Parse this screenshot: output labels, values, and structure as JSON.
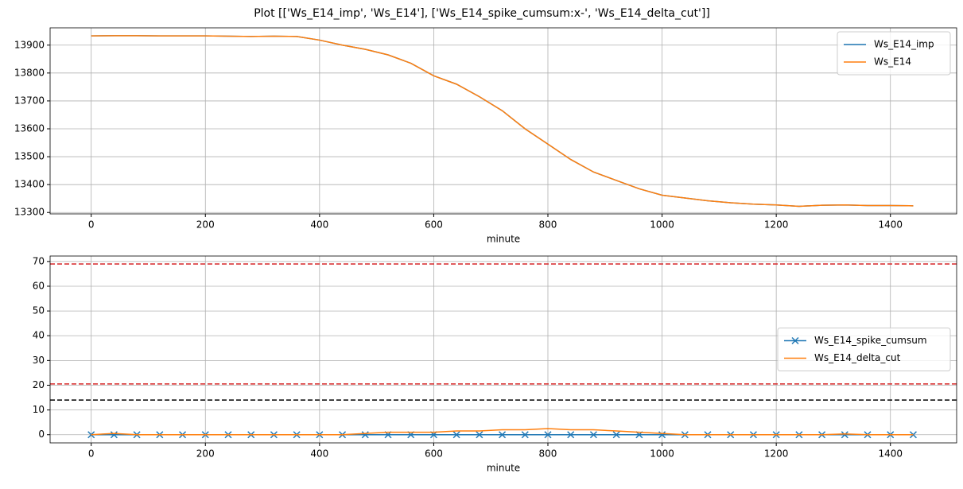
{
  "title": "Plot [['Ws_E14_imp', 'Ws_E14'], ['Ws_E14_spike_cumsum:x-', 'Ws_E14_delta_cut']]",
  "chart_data": [
    {
      "type": "line",
      "xlabel": "minute",
      "grid": true,
      "legend": "upper right",
      "xlim": [
        -72,
        1516
      ],
      "ylim": [
        13295,
        13962
      ],
      "xticks": [
        0,
        200,
        400,
        600,
        800,
        1000,
        1200,
        1400
      ],
      "yticks": [
        13300,
        13400,
        13500,
        13600,
        13700,
        13800,
        13900
      ],
      "x": [
        0,
        40,
        80,
        120,
        160,
        200,
        240,
        280,
        320,
        360,
        400,
        440,
        480,
        520,
        560,
        600,
        640,
        680,
        720,
        760,
        800,
        840,
        880,
        920,
        960,
        1000,
        1040,
        1080,
        1120,
        1160,
        1200,
        1240,
        1280,
        1320,
        1360,
        1400,
        1440
      ],
      "series": [
        {
          "name": "Ws_E14_imp",
          "color": "#1f77b4",
          "values": [
            13933,
            13934,
            13934,
            13933,
            13933,
            13933,
            13932,
            13931,
            13932,
            13931,
            13918,
            13900,
            13885,
            13865,
            13835,
            13790,
            13760,
            13715,
            13665,
            13600,
            13545,
            13490,
            13445,
            13415,
            13385,
            13362,
            13352,
            13342,
            13335,
            13330,
            13327,
            13322,
            13326,
            13327,
            13325,
            13325,
            13324
          ]
        },
        {
          "name": "Ws_E14",
          "color": "#ff7f0e",
          "values": [
            13933,
            13934,
            13934,
            13933,
            13933,
            13933,
            13932,
            13931,
            13932,
            13931,
            13918,
            13900,
            13885,
            13865,
            13835,
            13790,
            13760,
            13715,
            13665,
            13600,
            13545,
            13490,
            13445,
            13415,
            13385,
            13362,
            13352,
            13342,
            13335,
            13330,
            13327,
            13322,
            13326,
            13327,
            13325,
            13325,
            13324
          ]
        }
      ]
    },
    {
      "type": "line",
      "xlabel": "minute",
      "grid": true,
      "legend": "center right",
      "xlim": [
        -72,
        1516
      ],
      "ylim": [
        -3.3,
        72.2
      ],
      "xticks": [
        0,
        200,
        400,
        600,
        800,
        1000,
        1200,
        1400
      ],
      "yticks": [
        0,
        10,
        20,
        30,
        40,
        50,
        60,
        70
      ],
      "hlines": [
        {
          "value": 69,
          "color": "#d62728"
        },
        {
          "value": 20.5,
          "color": "#d62728"
        },
        {
          "value": 14,
          "color": "#000000"
        }
      ],
      "x": [
        0,
        40,
        80,
        120,
        160,
        200,
        240,
        280,
        320,
        360,
        400,
        440,
        480,
        520,
        560,
        600,
        640,
        680,
        720,
        760,
        800,
        840,
        880,
        920,
        960,
        1000,
        1040,
        1080,
        1120,
        1160,
        1200,
        1240,
        1280,
        1320,
        1360,
        1400,
        1440
      ],
      "series": [
        {
          "name": "Ws_E14_spike_cumsum",
          "color": "#1f77b4",
          "marker": "x",
          "values": [
            0,
            0,
            0,
            0,
            0,
            0,
            0,
            0,
            0,
            0,
            0,
            0,
            0,
            0,
            0,
            0,
            0,
            0,
            0,
            0,
            0,
            0,
            0,
            0,
            0,
            0,
            0,
            0,
            0,
            0,
            0,
            0,
            0,
            0,
            0,
            0,
            0
          ]
        },
        {
          "name": "Ws_E14_delta_cut",
          "color": "#ff7f0e",
          "values": [
            0,
            0.5,
            0,
            0,
            0,
            0,
            0,
            0,
            0,
            0,
            0,
            0,
            0.5,
            1,
            1,
            1,
            1.5,
            1.5,
            2,
            2,
            2.5,
            2,
            2,
            1.5,
            1,
            0.5,
            0,
            0,
            0,
            0,
            0,
            0,
            0,
            0.3,
            0,
            0,
            0
          ]
        }
      ]
    }
  ]
}
